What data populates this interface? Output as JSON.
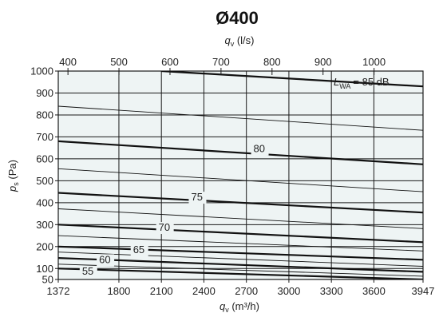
{
  "chart_data": {
    "type": "line",
    "title": "Ø400",
    "xlabel_bottom": "q",
    "xlabel_bottom_sub": "v",
    "xlabel_bottom_unit": " (m³/h)",
    "xlabel_top": "q",
    "xlabel_top_sub": "v",
    "xlabel_top_unit": " (l/s)",
    "ylabel": "p",
    "ylabel_sub": "s",
    "ylabel_unit": " (Pa)",
    "xlim": [
      1372,
      3947
    ],
    "xlim_top": [
      381,
      1096
    ],
    "ylim": [
      50,
      1000
    ],
    "bottom_ticks": [
      1372,
      1800,
      2100,
      2400,
      2700,
      3000,
      3300,
      3600,
      3947
    ],
    "top_ticks": [
      400,
      500,
      600,
      700,
      800,
      900,
      1000
    ],
    "y_ticks": [
      50,
      100,
      200,
      300,
      400,
      500,
      600,
      700,
      800,
      900,
      1000
    ],
    "grid": true,
    "lwa_label_prefix": "L",
    "lwa_label_sub": "WA",
    "lwa_label_value": "= 85 dB",
    "series": [
      {
        "name": "55",
        "label": "55",
        "label_at": [
          1540,
          72
        ],
        "x": [
          1372,
          3947
        ],
        "y": [
          100,
          50
        ],
        "weight": "bold"
      },
      {
        "name": "",
        "label": "",
        "x": [
          1372,
          3947
        ],
        "y": [
          120,
          65
        ],
        "weight": "thin"
      },
      {
        "name": "60",
        "label": "60",
        "label_at": [
          1660,
          125
        ],
        "x": [
          1372,
          3947
        ],
        "y": [
          148,
          85
        ],
        "weight": "bold"
      },
      {
        "name": "",
        "label": "",
        "x": [
          1372,
          3947
        ],
        "y": [
          175,
          110
        ],
        "weight": "thin"
      },
      {
        "name": "65",
        "label": "65",
        "label_at": [
          1900,
          170
        ],
        "x": [
          1372,
          3947
        ],
        "y": [
          200,
          140
        ],
        "weight": "bold"
      },
      {
        "name": "",
        "label": "",
        "x": [
          1372,
          3947
        ],
        "y": [
          250,
          180
        ],
        "weight": "thin"
      },
      {
        "name": "70",
        "label": "70",
        "label_at": [
          2080,
          272
        ],
        "x": [
          1372,
          3947
        ],
        "y": [
          300,
          220
        ],
        "weight": "bold"
      },
      {
        "name": "",
        "label": "",
        "x": [
          1372,
          3947
        ],
        "y": [
          372,
          282
        ],
        "weight": "thin"
      },
      {
        "name": "75",
        "label": "75",
        "label_at": [
          2310,
          410
        ],
        "x": [
          1372,
          3947
        ],
        "y": [
          445,
          355
        ],
        "weight": "bold"
      },
      {
        "name": "",
        "label": "",
        "x": [
          1372,
          3947
        ],
        "y": [
          555,
          450
        ],
        "weight": "thin"
      },
      {
        "name": "80",
        "label": "80",
        "label_at": [
          2750,
          630
        ],
        "x": [
          1372,
          3947
        ],
        "y": [
          680,
          575
        ],
        "weight": "bold"
      },
      {
        "name": "",
        "label": "",
        "x": [
          1372,
          3947
        ],
        "y": [
          840,
          730
        ],
        "weight": "thin"
      },
      {
        "name": "85",
        "label": "",
        "x": [
          2100,
          3947
        ],
        "y": [
          1000,
          930
        ],
        "weight": "bold"
      }
    ]
  }
}
